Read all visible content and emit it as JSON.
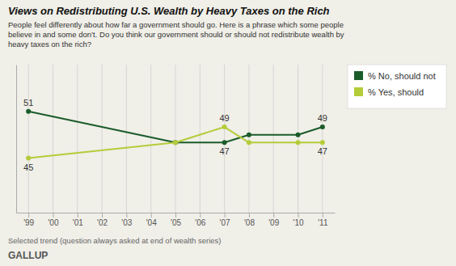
{
  "chart_data": {
    "type": "line",
    "title": "Views on Redistributing U.S. Wealth by Heavy Taxes on the Rich",
    "subtitle": "People feel differently about how far a government should go. Here is a phrase which some people\nbelieve in and some don’t. Do you think our government should or should not redistribute wealth by\nheavy taxes on the rich?",
    "footnote": "Selected trend (question always asked at end of wealth series)",
    "source": "GALLUP",
    "x": [
      1999,
      2005,
      2007,
      2008,
      2010,
      2011
    ],
    "series": [
      {
        "name": "% No, should not",
        "color": "#1a5c2a",
        "marker": "circle",
        "values": [
          51,
          47,
          47,
          48,
          48,
          49
        ]
      },
      {
        "name": "% Yes, should",
        "color": "#b5cc3a",
        "marker": "circle",
        "values": [
          45,
          47,
          49,
          47,
          47,
          47
        ]
      }
    ],
    "annotations": [
      {
        "text": "51",
        "x": 1999,
        "y": 51
      },
      {
        "text": "49",
        "x": 2011,
        "y": 49
      },
      {
        "text": "47",
        "x": 2007,
        "y": 47
      },
      {
        "text": "49",
        "x": 2007,
        "y": 49
      },
      {
        "text": "45",
        "x": 1999,
        "y": 45
      },
      {
        "text": "47",
        "x": 2011,
        "y": 47
      }
    ],
    "xlim": [
      1998.5,
      2011.5
    ],
    "xticks": [
      {
        "value": 1999,
        "label": "'99"
      },
      {
        "value": 2000,
        "label": "'00"
      },
      {
        "value": 2001,
        "label": "'01"
      },
      {
        "value": 2002,
        "label": "'02"
      },
      {
        "value": 2003,
        "label": "'03"
      },
      {
        "value": 2004,
        "label": "'04"
      },
      {
        "value": 2005,
        "label": "'05"
      },
      {
        "value": 2006,
        "label": "'06"
      },
      {
        "value": 2007,
        "label": "'07"
      },
      {
        "value": 2008,
        "label": "'08"
      },
      {
        "value": 2009,
        "label": "'09"
      },
      {
        "value": 2010,
        "label": "'10"
      },
      {
        "value": 2011,
        "label": "'11"
      }
    ],
    "ylim": [
      38,
      57
    ],
    "grid": true,
    "legend": "right",
    "tick_labels": "x"
  }
}
